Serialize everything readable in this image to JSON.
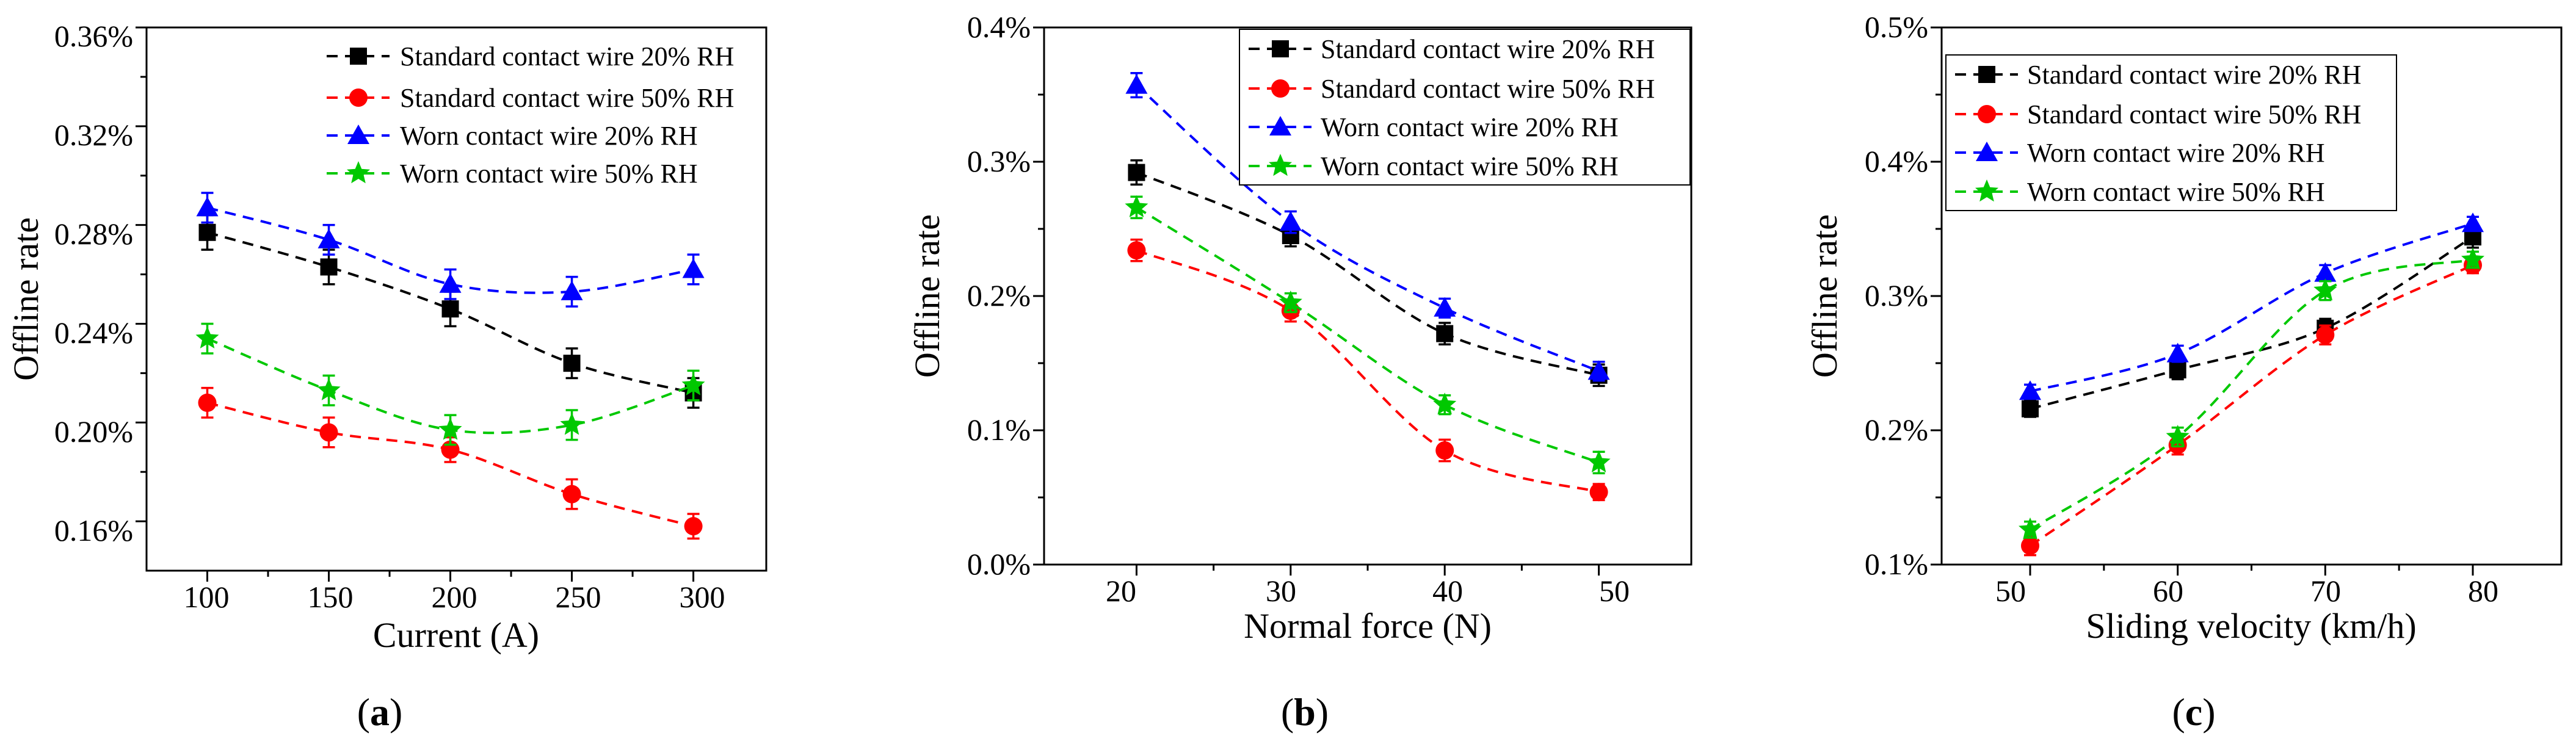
{
  "colors": {
    "standard_20": "#000000",
    "standard_50": "#ff0000",
    "worn_20": "#0000ff",
    "worn_50": "#00c800"
  },
  "chart_data": [
    {
      "type": "line",
      "panel_label": "a",
      "xlabel": "Current (A)",
      "ylabel": "Offline rate",
      "x": [
        100,
        150,
        200,
        250,
        300
      ],
      "x_ticks": [
        "100",
        "150",
        "200",
        "250",
        "300"
      ],
      "xlim": [
        75,
        330
      ],
      "ylim": [
        0.0014,
        0.0036
      ],
      "y_ticks": [
        0.0016,
        0.002,
        0.0024,
        0.0028,
        0.0032,
        0.0036
      ],
      "y_tick_labels": [
        "0.16%",
        "0.20%",
        "0.24%",
        "0.28%",
        "0.32%",
        "0.36%"
      ],
      "legend_position": "top-right",
      "series": [
        {
          "name": "Standard contact wire 20% RH",
          "color_key": "standard_20",
          "marker": "square",
          "values": [
            0.00277,
            0.00263,
            0.00246,
            0.00224,
            0.00212
          ],
          "error": [
            7e-05,
            7e-05,
            7e-05,
            6e-05,
            6e-05
          ]
        },
        {
          "name": "Standard contact wire 50% RH",
          "color_key": "standard_50",
          "marker": "circle",
          "values": [
            0.00208,
            0.00196,
            0.00189,
            0.00171,
            0.00158
          ],
          "error": [
            6e-05,
            6e-05,
            5e-05,
            6e-05,
            5e-05
          ]
        },
        {
          "name": "Worn contact wire 20% RH",
          "color_key": "worn_20",
          "marker": "triangle",
          "values": [
            0.00287,
            0.00274,
            0.00256,
            0.00253,
            0.00262
          ],
          "error": [
            6e-05,
            6e-05,
            6e-05,
            6e-05,
            6e-05
          ]
        },
        {
          "name": "Worn contact wire 50% RH",
          "color_key": "worn_50",
          "marker": "star",
          "values": [
            0.00234,
            0.00213,
            0.00197,
            0.00199,
            0.00215
          ],
          "error": [
            6e-05,
            6e-05,
            6e-05,
            6e-05,
            6e-05
          ]
        }
      ]
    },
    {
      "type": "line",
      "panel_label": "b",
      "xlabel": "Normal force (N)",
      "ylabel": "Offline rate",
      "x": [
        20,
        30,
        40,
        50
      ],
      "x_ticks": [
        "20",
        "30",
        "40",
        "50"
      ],
      "xlim": [
        14,
        56
      ],
      "ylim": [
        0.0,
        0.004
      ],
      "y_ticks": [
        0.0,
        0.001,
        0.002,
        0.003,
        0.004
      ],
      "y_tick_labels": [
        "0.0%",
        "0.1%",
        "0.2%",
        "0.3%",
        "0.4%"
      ],
      "legend_position": "top-right",
      "series": [
        {
          "name": "Standard contact wire 20% RH",
          "color_key": "standard_20",
          "marker": "square",
          "values": [
            0.00292,
            0.00245,
            0.00172,
            0.00141
          ],
          "error": [
            9e-05,
            8e-05,
            8e-05,
            8e-05
          ]
        },
        {
          "name": "Standard contact wire 50% RH",
          "color_key": "standard_50",
          "marker": "circle",
          "values": [
            0.00234,
            0.00189,
            0.00085,
            0.00054
          ],
          "error": [
            8e-05,
            8e-05,
            8e-05,
            6e-05
          ]
        },
        {
          "name": "Worn contact wire 20% RH",
          "color_key": "worn_20",
          "marker": "triangle",
          "values": [
            0.00357,
            0.00255,
            0.00191,
            0.00144
          ],
          "error": [
            9e-05,
            8e-05,
            7e-05,
            7e-05
          ]
        },
        {
          "name": "Worn contact wire 50% RH",
          "color_key": "worn_50",
          "marker": "star",
          "values": [
            0.00266,
            0.00195,
            0.00119,
            0.00076
          ],
          "error": [
            8e-05,
            7e-05,
            7e-05,
            8e-05
          ]
        }
      ]
    },
    {
      "type": "line",
      "panel_label": "c",
      "xlabel": "Sliding velocity (km/h)",
      "ylabel": "Offline rate",
      "x": [
        50,
        60,
        70,
        80
      ],
      "x_ticks": [
        "50",
        "60",
        "70",
        "80"
      ],
      "xlim": [
        44,
        86
      ],
      "ylim": [
        0.001,
        0.005
      ],
      "y_ticks": [
        0.001,
        0.002,
        0.003,
        0.004,
        0.005
      ],
      "y_tick_labels": [
        "0.1%",
        "0.2%",
        "0.3%",
        "0.4%",
        "0.5%"
      ],
      "legend_position": "top-left",
      "series": [
        {
          "name": "Standard contact wire 20% RH",
          "color_key": "standard_20",
          "marker": "square",
          "values": [
            0.00216,
            0.00245,
            0.00276,
            0.00344
          ],
          "error": [
            6e-05,
            7e-05,
            7e-05,
            8e-05
          ]
        },
        {
          "name": "Standard contact wire 50% RH",
          "color_key": "standard_50",
          "marker": "circle",
          "values": [
            0.00114,
            0.00189,
            0.00271,
            0.00323
          ],
          "error": [
            7e-05,
            7e-05,
            7e-05,
            6e-05
          ]
        },
        {
          "name": "Worn contact wire 20% RH",
          "color_key": "worn_20",
          "marker": "triangle",
          "values": [
            0.00229,
            0.00257,
            0.00317,
            0.00354
          ],
          "error": [
            5e-05,
            6e-05,
            6e-05,
            5e-05
          ]
        },
        {
          "name": "Worn contact wire 50% RH",
          "color_key": "worn_50",
          "marker": "star",
          "values": [
            0.00126,
            0.00195,
            0.00304,
            0.00327
          ],
          "error": [
            6e-05,
            7e-05,
            7e-05,
            6e-05
          ]
        }
      ]
    }
  ]
}
